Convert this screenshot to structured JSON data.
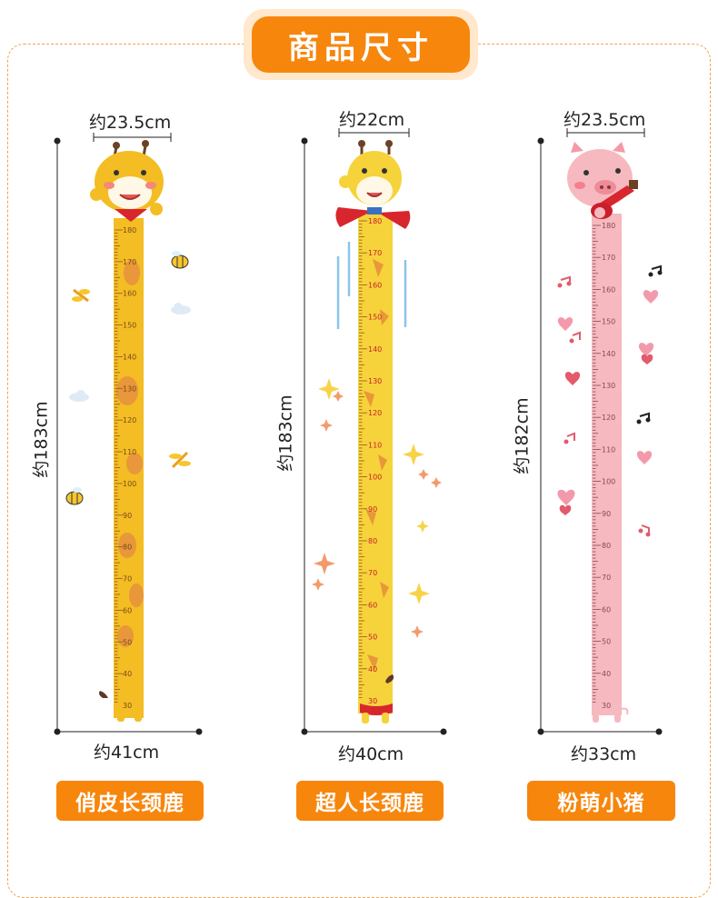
{
  "title": "商品尺寸",
  "products": [
    {
      "name": "俏皮长颈鹿",
      "top_width": "约23.5cm",
      "height": "约183cm",
      "bottom_width": "约41cm",
      "ruler_color": "#f3bd23",
      "ruler_ticks": [
        "180",
        "170",
        "160",
        "150",
        "140",
        "130",
        "120",
        "110",
        "100",
        "90",
        "80",
        "70",
        "60",
        "50",
        "40",
        "30"
      ]
    },
    {
      "name": "超人长颈鹿",
      "top_width": "约22cm",
      "height": "约183cm",
      "bottom_width": "约40cm",
      "ruler_color": "#f6d33a",
      "ruler_ticks": [
        "180",
        "170",
        "160",
        "150",
        "140",
        "130",
        "120",
        "110",
        "100",
        "90",
        "80",
        "70",
        "60",
        "50",
        "40",
        "30"
      ]
    },
    {
      "name": "粉萌小猪",
      "top_width": "约23.5cm",
      "height": "约182cm",
      "bottom_width": "约33cm",
      "ruler_color": "#f6b9bf",
      "ruler_ticks": [
        "180",
        "170",
        "160",
        "150",
        "140",
        "130",
        "120",
        "110",
        "100",
        "90",
        "80",
        "70",
        "60",
        "50",
        "40",
        "30"
      ]
    }
  ],
  "colors": {
    "accent": "#f7860d",
    "dashed_border": "#f3a24a"
  }
}
